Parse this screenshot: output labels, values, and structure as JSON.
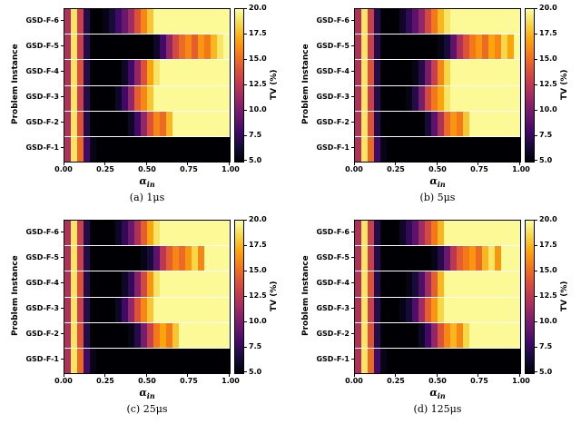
{
  "chart_data": {
    "type": "heatmap",
    "x_label_base": "α",
    "x_label_subscript": "in",
    "y_label": "Problem Instance",
    "colorbar_label": "TV (%)",
    "vmin": 5.0,
    "vmax": 20.0,
    "colormap": "inferno",
    "colormap_anchors": [
      [
        0,
        "#000004"
      ],
      [
        0.1,
        "#160b39"
      ],
      [
        0.2,
        "#420a68"
      ],
      [
        0.3,
        "#6a176e"
      ],
      [
        0.4,
        "#932667"
      ],
      [
        0.5,
        "#bc3754"
      ],
      [
        0.6,
        "#dd513a"
      ],
      [
        0.7,
        "#f37819"
      ],
      [
        0.8,
        "#fca50a"
      ],
      [
        0.9,
        "#f6d746"
      ],
      [
        1,
        "#fcffa4"
      ]
    ],
    "x_ticks": [
      0,
      0.25,
      0.5,
      0.75,
      1
    ],
    "x_tick_labels": [
      "0.00",
      "0.25",
      "0.50",
      "0.75",
      "1.00"
    ],
    "colorbar_ticks": [
      5,
      7.5,
      10,
      12.5,
      15,
      17.5,
      20
    ],
    "colorbar_tick_labels": [
      "5.0",
      "7.5",
      "10.0",
      "12.5",
      "15.0",
      "17.5",
      "20.0"
    ],
    "y_categories_top_to_bottom": [
      "GSD-F-6",
      "GSD-F-5",
      "GSD-F-4",
      "GSD-F-3",
      "GSD-F-2",
      "GSD-F-1"
    ],
    "alpha_values": [
      0,
      0.04,
      0.08,
      0.12,
      0.16,
      0.2,
      0.24,
      0.28,
      0.32,
      0.36,
      0.4,
      0.44,
      0.48,
      0.52,
      0.56,
      0.6,
      0.64,
      0.68,
      0.72,
      0.76,
      0.8,
      0.84,
      0.88,
      0.92,
      0.96,
      1
    ],
    "subplots": [
      {
        "caption": "(a) 1μs",
        "values": [
          [
            12,
            19,
            13,
            7,
            5,
            5,
            5.5,
            6.5,
            8,
            9.5,
            11.5,
            14,
            16,
            18,
            19.8,
            19.8,
            19.8,
            19.8,
            19.8,
            19.8,
            19.8,
            19.8,
            19.8,
            19.8,
            19.8,
            19.8
          ],
          [
            12,
            19,
            13,
            7,
            5,
            5,
            5,
            5,
            5,
            5,
            5,
            5,
            5,
            5,
            6,
            8,
            11,
            13.5,
            15,
            16,
            14.5,
            16.5,
            15.5,
            17.5,
            19,
            19.8
          ],
          [
            12,
            19,
            14,
            7,
            5,
            5,
            5,
            5,
            5,
            6,
            8,
            11,
            14,
            17,
            19,
            19.8,
            19.8,
            19.8,
            19.8,
            19.8,
            19.8,
            19.8,
            19.8,
            19.8,
            19.8,
            19.8
          ],
          [
            12,
            19,
            13,
            7,
            5,
            5,
            5,
            5,
            6,
            8,
            11,
            14.5,
            16,
            18,
            19.8,
            19.8,
            19.8,
            19.8,
            19.8,
            19.8,
            19.8,
            19.8,
            19.8,
            19.8,
            19.8,
            19.8
          ],
          [
            12,
            19,
            14,
            7,
            5,
            5,
            5,
            5,
            5,
            5,
            6,
            8,
            11,
            14,
            16,
            15,
            17.5,
            19.8,
            19.8,
            19.8,
            19.8,
            19.8,
            19.8,
            19.8,
            19.8,
            19.8
          ],
          [
            12,
            19,
            15,
            8,
            5.5,
            5,
            5,
            5,
            5,
            5,
            5,
            5,
            5,
            5,
            5,
            5,
            5,
            5,
            5,
            5,
            5,
            5,
            5,
            5,
            5,
            5
          ]
        ]
      },
      {
        "caption": "(b) 5μs",
        "values": [
          [
            12,
            19,
            13,
            7,
            5,
            5,
            5,
            6,
            7.5,
            9,
            11,
            13.5,
            15.5,
            17.5,
            19,
            19.8,
            19.8,
            19.8,
            19.8,
            19.8,
            19.8,
            19.8,
            19.8,
            19.8,
            19.8,
            19.8
          ],
          [
            12,
            19,
            13,
            7,
            5,
            5,
            5,
            5,
            5,
            5,
            5,
            5,
            5,
            5.5,
            6.5,
            9,
            12,
            14,
            15.5,
            16.5,
            15,
            17,
            16,
            18.5,
            17,
            19.8
          ],
          [
            12,
            19,
            14,
            7,
            5,
            5,
            5,
            5,
            5,
            5.5,
            7,
            10,
            13,
            16,
            18.5,
            19.8,
            19.8,
            19.8,
            19.8,
            19.8,
            19.8,
            19.8,
            19.8,
            19.8,
            19.8,
            19.8
          ],
          [
            12,
            19,
            13,
            7,
            5,
            5,
            5,
            5,
            5.5,
            7,
            10,
            13.5,
            15.5,
            17,
            19,
            19.8,
            19.8,
            19.8,
            19.8,
            19.8,
            19.8,
            19.8,
            19.8,
            19.8,
            19.8,
            19.8
          ],
          [
            12,
            19,
            14,
            7,
            5,
            5,
            5,
            5,
            5,
            5,
            5,
            6.5,
            9,
            12,
            15,
            16.5,
            15.5,
            18,
            19.8,
            19.8,
            19.8,
            19.8,
            19.8,
            19.8,
            19.8,
            19.8
          ],
          [
            12,
            19,
            15,
            8,
            5.5,
            5,
            5,
            5,
            5,
            5,
            5,
            5,
            5,
            5,
            5,
            5,
            5,
            5,
            5,
            5,
            5,
            5,
            5,
            5,
            5,
            5
          ]
        ]
      },
      {
        "caption": "(c) 25μs",
        "values": [
          [
            12,
            19,
            13,
            7,
            5,
            5,
            5,
            5,
            6,
            7.5,
            9.5,
            12,
            14.5,
            17,
            19,
            19.8,
            19.8,
            19.8,
            19.8,
            19.8,
            19.8,
            19.8,
            19.8,
            19.8,
            19.8,
            19.8
          ],
          [
            12,
            19,
            13,
            7,
            5,
            5,
            5,
            5,
            5,
            5,
            5,
            5,
            5.5,
            6.5,
            9,
            12.5,
            14.5,
            16,
            15,
            16.5,
            18.5,
            16,
            19.8,
            19.8,
            19.8,
            19.8
          ],
          [
            12,
            19,
            14,
            7,
            5,
            5,
            5,
            5,
            5,
            6,
            7.5,
            10.5,
            13.5,
            16.5,
            19,
            19.8,
            19.8,
            19.8,
            19.8,
            19.8,
            19.8,
            19.8,
            19.8,
            19.8,
            19.8,
            19.8
          ],
          [
            12,
            19,
            13,
            7,
            5,
            5,
            5,
            5,
            6,
            8,
            11,
            14,
            16,
            18,
            19.8,
            19.8,
            19.8,
            19.8,
            19.8,
            19.8,
            19.8,
            19.8,
            19.8,
            19.8,
            19.8,
            19.8
          ],
          [
            12,
            19,
            14,
            7,
            5,
            5,
            5,
            5,
            5,
            5,
            5.5,
            7,
            10,
            13,
            15.5,
            17,
            15.5,
            18,
            19.8,
            19.8,
            19.8,
            19.8,
            19.8,
            19.8,
            19.8,
            19.8
          ],
          [
            12,
            19,
            15,
            8,
            5.5,
            5,
            5,
            5,
            5,
            5,
            5,
            5,
            5,
            5,
            5,
            5,
            5,
            5,
            5,
            5,
            5,
            5,
            5,
            5,
            5,
            5
          ]
        ]
      },
      {
        "caption": "(d) 125μs",
        "values": [
          [
            12,
            19,
            13,
            7,
            5,
            5,
            5,
            6,
            7.5,
            9,
            11.5,
            13.5,
            15.5,
            17.5,
            19.8,
            19.8,
            19.8,
            19.8,
            19.8,
            19.8,
            19.8,
            19.8,
            19.8,
            19.8,
            19.8,
            19.8
          ],
          [
            12,
            19,
            13,
            7,
            5,
            5,
            5,
            5,
            5,
            5,
            5,
            5,
            5.5,
            7,
            9.5,
            12.5,
            14.5,
            15.5,
            16.5,
            15,
            17.5,
            19,
            16.5,
            19.8,
            19.8,
            19.8
          ],
          [
            12,
            19,
            14,
            7,
            5,
            5,
            5,
            5,
            5.5,
            6.5,
            8.5,
            11.5,
            14.5,
            17.5,
            19.8,
            19.8,
            19.8,
            19.8,
            19.8,
            19.8,
            19.8,
            19.8,
            19.8,
            19.8,
            19.8,
            19.8
          ],
          [
            12,
            19,
            13,
            7,
            5,
            5,
            5,
            5.5,
            6.5,
            8.5,
            11.5,
            14.5,
            16.5,
            18.5,
            19.8,
            19.8,
            19.8,
            19.8,
            19.8,
            19.8,
            19.8,
            19.8,
            19.8,
            19.8,
            19.8,
            19.8
          ],
          [
            12,
            19,
            14,
            7,
            5,
            5,
            5,
            5,
            5,
            5,
            6,
            8,
            11,
            14,
            16,
            17.5,
            16,
            18.5,
            19.8,
            19.8,
            19.8,
            19.8,
            19.8,
            19.8,
            19.8,
            19.8
          ],
          [
            12,
            19,
            15,
            8,
            5.5,
            5,
            5,
            5,
            5,
            5,
            5,
            5,
            5,
            5,
            5,
            5,
            5,
            5,
            5,
            5,
            5,
            5,
            5,
            5,
            5,
            5
          ]
        ]
      }
    ]
  }
}
